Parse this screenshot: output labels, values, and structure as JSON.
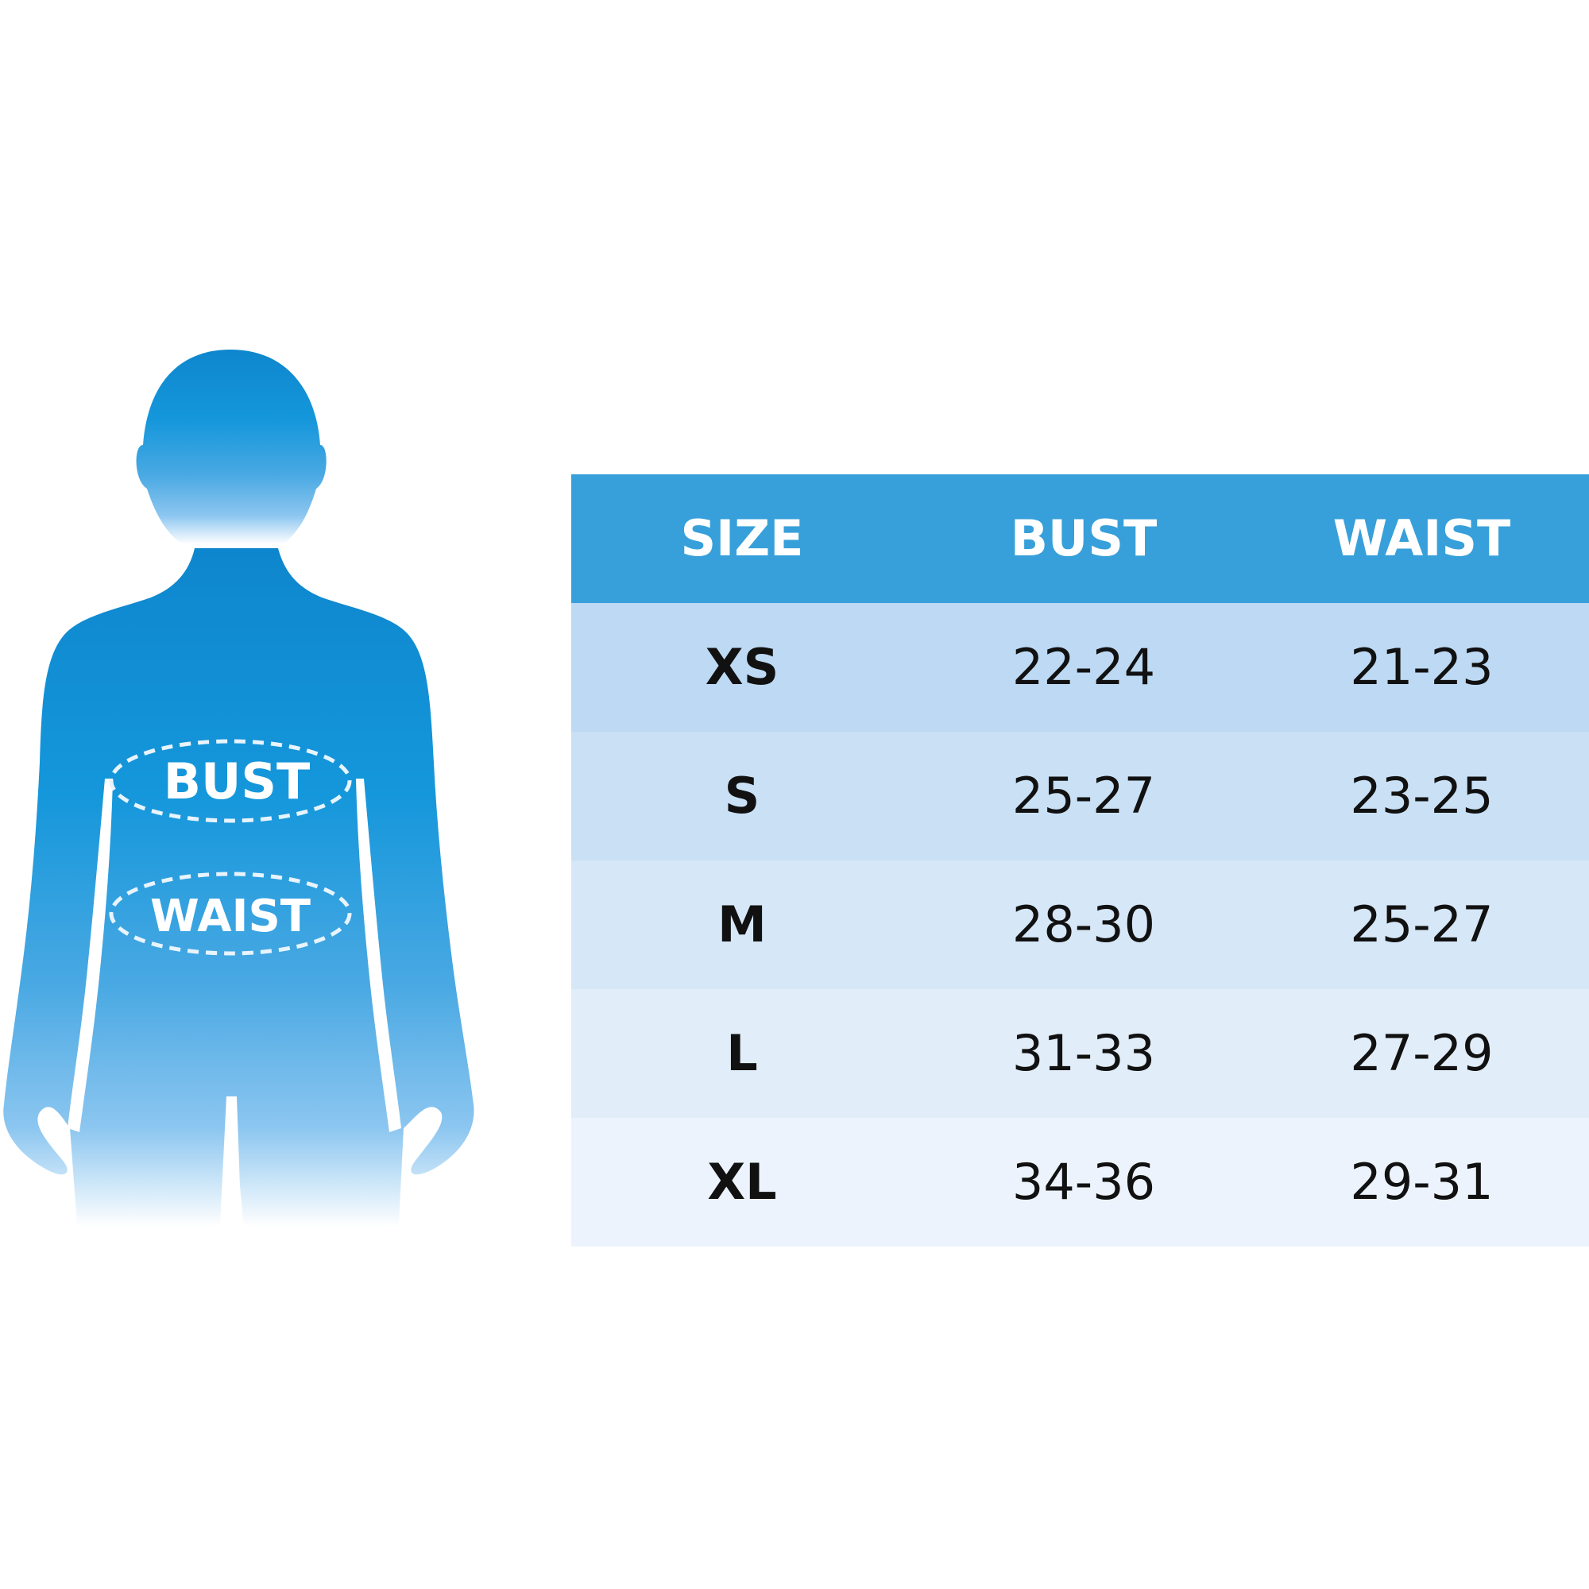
{
  "figure": {
    "bust_label": "BUST",
    "waist_label": "WAIST",
    "colors": {
      "body_top": "#0b8fd6",
      "body_mid": "#2f9ee0",
      "body_low": "#8cc6f0",
      "body_fade": "#ffffff",
      "dashed_ring": "#e8f4fd"
    }
  },
  "table": {
    "headers": {
      "size": "SIZE",
      "bust": "BUST",
      "waist": "WAIST"
    },
    "rows": [
      {
        "size": "XS",
        "bust": "22-24",
        "waist": "21-23"
      },
      {
        "size": "S",
        "bust": "25-27",
        "waist": "23-25"
      },
      {
        "size": "M",
        "bust": "28-30",
        "waist": "25-27"
      },
      {
        "size": "L",
        "bust": "31-33",
        "waist": "27-29"
      },
      {
        "size": "XL",
        "bust": "34-36",
        "waist": "29-31"
      }
    ],
    "colors": {
      "header_bg": "#37a0da",
      "header_text": "#ffffff",
      "row_text": "#111111"
    }
  }
}
